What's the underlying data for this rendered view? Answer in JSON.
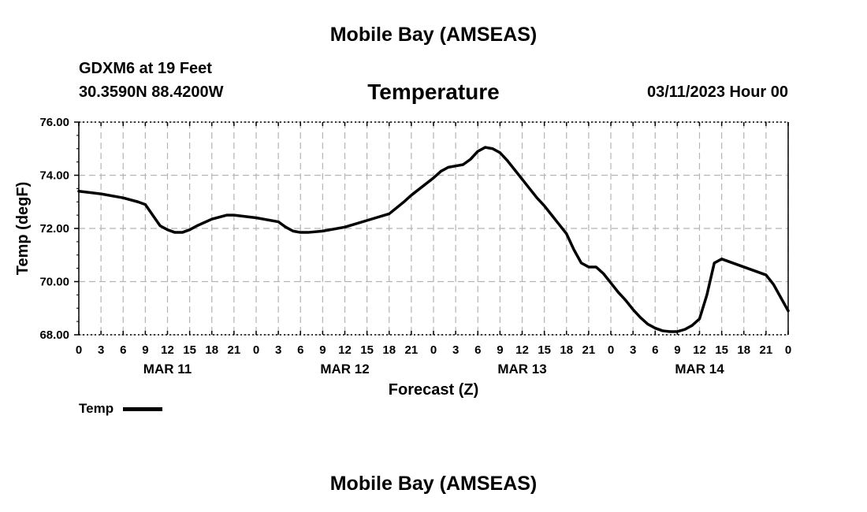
{
  "header": {
    "region_title": "Mobile Bay (AMSEAS)",
    "station": "GDXM6 at 19 Feet",
    "coordinates": "30.3590N  88.4200W",
    "date": "03/11/2023 Hour 00"
  },
  "footer": {
    "region_title": "Mobile Bay (AMSEAS)"
  },
  "chart_data": {
    "type": "line",
    "title": "Temperature",
    "xlabel": "Forecast (Z)",
    "ylabel": "Temp (degF)",
    "ylim": [
      68,
      76
    ],
    "xlim": [
      0,
      96
    ],
    "grid": true,
    "legend_placement": "bottom-left",
    "y_ticks": [
      "68.00",
      "70.00",
      "72.00",
      "74.00",
      "76.00"
    ],
    "x_ticks": {
      "hours": [
        0,
        3,
        6,
        9,
        12,
        15,
        18,
        21,
        24,
        27,
        30,
        33,
        36,
        39,
        42,
        45,
        48,
        51,
        54,
        57,
        60,
        63,
        66,
        69,
        72,
        75,
        78,
        81,
        84,
        87,
        90,
        93,
        96
      ],
      "labels": [
        "0",
        "3",
        "6",
        "9",
        "12",
        "15",
        "18",
        "21",
        "0",
        "3",
        "6",
        "9",
        "12",
        "15",
        "18",
        "21",
        "0",
        "3",
        "6",
        "9",
        "12",
        "15",
        "18",
        "21",
        "0",
        "3",
        "6",
        "9",
        "12",
        "15",
        "18",
        "21",
        "0"
      ]
    },
    "day_labels": [
      {
        "hour": 12,
        "label": "MAR 11"
      },
      {
        "hour": 36,
        "label": "MAR 12"
      },
      {
        "hour": 60,
        "label": "MAR 13"
      },
      {
        "hour": 84,
        "label": "MAR 14"
      }
    ],
    "colors": {
      "line": "#000000",
      "grid": "#b4b4b4"
    },
    "series": [
      {
        "name": "Temp",
        "x": [
          0,
          3,
          6,
          8,
          9,
          10,
          11,
          12,
          13,
          14,
          15,
          16,
          18,
          20,
          21,
          24,
          27,
          28,
          29,
          30,
          31,
          33,
          36,
          39,
          42,
          44,
          45,
          48,
          49,
          50,
          51,
          52,
          53,
          54,
          55,
          56,
          57,
          58,
          59,
          60,
          62,
          63,
          64,
          65,
          66,
          67,
          68,
          69,
          70,
          71,
          72,
          73,
          74,
          75,
          76,
          77,
          78,
          79,
          80,
          81,
          82,
          83,
          84,
          85,
          86,
          87,
          88,
          89,
          90,
          91,
          92,
          93,
          94,
          95,
          96
        ],
        "y": [
          73.4,
          73.3,
          73.15,
          73.0,
          72.9,
          72.5,
          72.1,
          71.95,
          71.85,
          71.85,
          71.95,
          72.1,
          72.35,
          72.5,
          72.5,
          72.4,
          72.25,
          72.05,
          71.9,
          71.85,
          71.85,
          71.9,
          72.05,
          72.3,
          72.55,
          73.0,
          73.25,
          73.9,
          74.15,
          74.3,
          74.35,
          74.4,
          74.6,
          74.9,
          75.05,
          75.0,
          74.85,
          74.55,
          74.2,
          73.85,
          73.15,
          72.85,
          72.5,
          72.15,
          71.8,
          71.2,
          70.7,
          70.55,
          70.55,
          70.3,
          69.95,
          69.6,
          69.3,
          68.95,
          68.65,
          68.4,
          68.25,
          68.15,
          68.12,
          68.12,
          68.2,
          68.35,
          68.6,
          69.5,
          70.7,
          70.85,
          70.75,
          70.65,
          70.55,
          70.45,
          70.35,
          70.25,
          69.9,
          69.4,
          68.9
        ]
      }
    ]
  }
}
